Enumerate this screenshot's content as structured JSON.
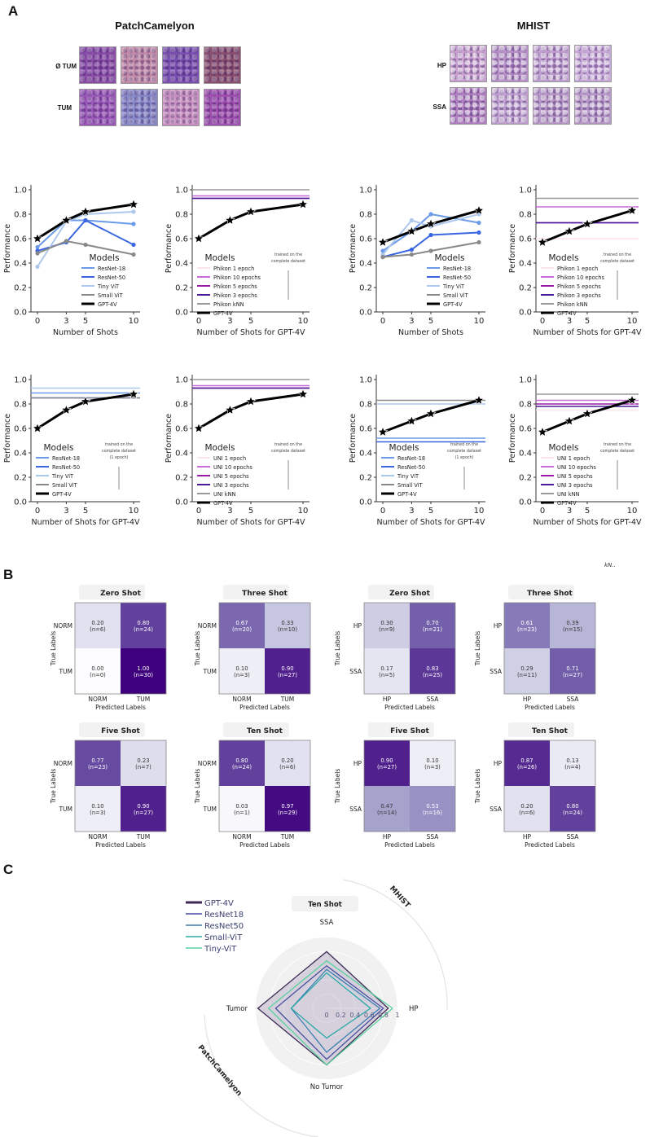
{
  "panels": {
    "a_label": "A",
    "b_label": "B",
    "c_label": "C"
  },
  "stray_text": "kN..",
  "datasets": {
    "pcam": {
      "title": "PatchCamelyon",
      "row_labels": [
        "Ø TUM",
        "TUM"
      ],
      "tile_colors": [
        [
          "#8a4ea8",
          "#c08aa8",
          "#7a50b0",
          "#8a5070"
        ],
        [
          "#9a58b8",
          "#8888c8",
          "#c890c0",
          "#a050b0"
        ]
      ]
    },
    "mhist": {
      "title": "MHIST",
      "row_labels": [
        "HP",
        "SSA"
      ],
      "tile_colors": [
        [
          "#c8a0d0",
          "#b890c8",
          "#c0a0d0",
          "#c8a8d8"
        ],
        [
          "#b080c0",
          "#c0a0d0",
          "#b898c8",
          "#b898c8"
        ]
      ]
    }
  },
  "chart_data": [
    {
      "id": "pcam-fewshot",
      "type": "line",
      "xlabel": "Number of Shots",
      "ylabel": "Performance",
      "x": [
        0,
        3,
        5,
        10
      ],
      "xticks": [
        "0",
        "3",
        "5",
        "10"
      ],
      "yticks": [
        "0.0",
        "0.2",
        "0.4",
        "0.6",
        "0.8",
        "1.0"
      ],
      "ylim": [
        0,
        1
      ],
      "legend_title": "Models",
      "legend_position": "lower-right",
      "series": [
        {
          "name": "ResNet-18",
          "color": "#6b9ae8",
          "values": [
            0.53,
            0.75,
            0.75,
            0.72
          ]
        },
        {
          "name": "ResNet-50",
          "color": "#3a66e0",
          "values": [
            0.5,
            0.57,
            0.75,
            0.55
          ]
        },
        {
          "name": "Tiny ViT",
          "color": "#aec7ec",
          "values": [
            0.37,
            0.74,
            0.8,
            0.82
          ]
        },
        {
          "name": "Small ViT",
          "color": "#888888",
          "values": [
            0.48,
            0.58,
            0.55,
            0.47
          ]
        },
        {
          "name": "GPT-4V",
          "color": "#000000",
          "values": [
            0.6,
            0.75,
            0.82,
            0.88
          ],
          "star": true
        }
      ],
      "hlines": []
    },
    {
      "id": "pcam-phikon",
      "type": "line",
      "xlabel": "Number of Shots for GPT-4V",
      "ylabel": "Performance",
      "x": [
        0,
        3,
        5,
        10
      ],
      "xticks": [
        "0",
        "3",
        "5",
        "10"
      ],
      "yticks": [
        "0.0",
        "0.2",
        "0.4",
        "0.6",
        "0.8",
        "1.0"
      ],
      "ylim": [
        0,
        1
      ],
      "legend_title": "Models",
      "legend_position": "lower-left",
      "annotation": [
        "trained on the",
        "complete dataset"
      ],
      "series": [
        {
          "name": "Phikon 1 epoch",
          "color": "#fbe4ec",
          "hline": 0.93
        },
        {
          "name": "Phikon 10 epochs",
          "color": "#c86ad8",
          "hline": 0.95
        },
        {
          "name": "Phikon 5 epochs",
          "color": "#9a1aa8",
          "hline": 0.93
        },
        {
          "name": "Phikon 3 epochs",
          "color": "#4a1a98",
          "hline": 0.93
        },
        {
          "name": "Phikon kNN",
          "color": "#999999",
          "hline": 1.0
        },
        {
          "name": "GPT-4V",
          "color": "#000000",
          "values": [
            0.6,
            0.75,
            0.82,
            0.88
          ],
          "star": true
        }
      ]
    },
    {
      "id": "mhist-fewshot",
      "type": "line",
      "xlabel": "Number of Shots",
      "ylabel": "Performance",
      "x": [
        0,
        3,
        5,
        10
      ],
      "xticks": [
        "0",
        "3",
        "5",
        "10"
      ],
      "yticks": [
        "0.0",
        "0.2",
        "0.4",
        "0.6",
        "0.8",
        "1.0"
      ],
      "ylim": [
        0,
        1
      ],
      "legend_title": "Models",
      "legend_position": "lower-right",
      "series": [
        {
          "name": "ResNet-18",
          "color": "#6b9ae8",
          "values": [
            0.5,
            0.66,
            0.8,
            0.73
          ]
        },
        {
          "name": "ResNet-50",
          "color": "#3a66e0",
          "values": [
            0.45,
            0.51,
            0.63,
            0.65
          ]
        },
        {
          "name": "Tiny ViT",
          "color": "#aec7ec",
          "values": [
            0.47,
            0.75,
            0.7,
            0.8
          ]
        },
        {
          "name": "Small ViT",
          "color": "#888888",
          "values": [
            0.45,
            0.47,
            0.5,
            0.57
          ]
        },
        {
          "name": "GPT-4V",
          "color": "#000000",
          "values": [
            0.57,
            0.66,
            0.72,
            0.83
          ],
          "star": true
        }
      ]
    },
    {
      "id": "mhist-phikon",
      "type": "line",
      "xlabel": "Number of Shots for GPT-4V",
      "ylabel": "Performance",
      "x": [
        0,
        3,
        5,
        10
      ],
      "xticks": [
        "0",
        "3",
        "5",
        "10"
      ],
      "yticks": [
        "0.0",
        "0.2",
        "0.4",
        "0.6",
        "0.8",
        "1.0"
      ],
      "ylim": [
        0,
        1
      ],
      "legend_title": "Models",
      "legend_position": "lower-left",
      "annotation": [
        "trained on the",
        "complete dataset"
      ],
      "series": [
        {
          "name": "Phikon 1 epoch",
          "color": "#fbe4ec",
          "hline": 0.6
        },
        {
          "name": "Phikon 10 epochs",
          "color": "#c86ad8",
          "hline": 0.86
        },
        {
          "name": "Phikon 5 epochs",
          "color": "#9a1aa8",
          "hline": 0.73
        },
        {
          "name": "Phikon 3 epochs",
          "color": "#4a1a98",
          "hline": 0.73
        },
        {
          "name": "Phikon kNN",
          "color": "#999999",
          "hline": 0.93
        },
        {
          "name": "GPT-4V",
          "color": "#000000",
          "values": [
            0.57,
            0.66,
            0.72,
            0.83
          ],
          "star": true
        }
      ]
    },
    {
      "id": "pcam-cnn-full",
      "type": "line",
      "xlabel": "Number of Shots for GPT-4V",
      "ylabel": "Performance",
      "x": [
        0,
        3,
        5,
        10
      ],
      "xticks": [
        "0",
        "3",
        "5",
        "10"
      ],
      "yticks": [
        "0.0",
        "0.2",
        "0.4",
        "0.6",
        "0.8",
        "1.0"
      ],
      "ylim": [
        0,
        1
      ],
      "legend_title": "Models",
      "legend_position": "lower-left",
      "annotation": [
        "trained on the",
        "complete dataset",
        "(1 epoch)"
      ],
      "series": [
        {
          "name": "ResNet-18",
          "color": "#6b9ae8",
          "hline": 0.89
        },
        {
          "name": "ResNet-50",
          "color": "#3a66e0",
          "hline": 0.85
        },
        {
          "name": "Tiny ViT",
          "color": "#aec7ec",
          "hline": 0.93
        },
        {
          "name": "Small ViT",
          "color": "#888888",
          "hline": 0.85
        },
        {
          "name": "GPT-4V",
          "color": "#000000",
          "values": [
            0.6,
            0.75,
            0.82,
            0.88
          ],
          "star": true
        }
      ]
    },
    {
      "id": "pcam-uni",
      "type": "line",
      "xlabel": "Number of Shots for GPT-4V",
      "ylabel": "Performance",
      "x": [
        0,
        3,
        5,
        10
      ],
      "xticks": [
        "0",
        "3",
        "5",
        "10"
      ],
      "yticks": [
        "0.0",
        "0.2",
        "0.4",
        "0.6",
        "0.8",
        "1.0"
      ],
      "ylim": [
        0,
        1
      ],
      "legend_title": "Models",
      "legend_position": "lower-left",
      "annotation": [
        "trained on the",
        "complete dataset"
      ],
      "series": [
        {
          "name": "UNI 1 epoch",
          "color": "#fbe4ec",
          "hline": 0.93
        },
        {
          "name": "UNI 10 epochs",
          "color": "#c86ad8",
          "hline": 0.95
        },
        {
          "name": "UNI 5 epochs",
          "color": "#9a1aa8",
          "hline": 0.93
        },
        {
          "name": "UNI 3 epochs",
          "color": "#4a1a98",
          "hline": 0.93
        },
        {
          "name": "UNI kNN",
          "color": "#999999",
          "hline": 1.0
        },
        {
          "name": "GPT-4V",
          "color": "#000000",
          "values": [
            0.6,
            0.75,
            0.82,
            0.88
          ],
          "star": true
        }
      ]
    },
    {
      "id": "mhist-cnn-full",
      "type": "line",
      "xlabel": "Number of Shots for GPT-4V",
      "ylabel": "Performance",
      "x": [
        0,
        3,
        5,
        10
      ],
      "xticks": [
        "0",
        "3",
        "5",
        "10"
      ],
      "yticks": [
        "0.0",
        "0.2",
        "0.4",
        "0.6",
        "0.8",
        "1.0"
      ],
      "ylim": [
        0,
        1
      ],
      "legend_title": "Models",
      "legend_position": "lower-left",
      "annotation": [
        "trained on the",
        "complete dataset",
        "(1 epoch)"
      ],
      "series": [
        {
          "name": "ResNet-18",
          "color": "#6b9ae8",
          "hline": 0.52
        },
        {
          "name": "ResNet-50",
          "color": "#3a66e0",
          "hline": 0.49
        },
        {
          "name": "Tiny ViT",
          "color": "#aec7ec",
          "hline": 0.8
        },
        {
          "name": "Small ViT",
          "color": "#888888",
          "hline": 0.83
        },
        {
          "name": "GPT-4V",
          "color": "#000000",
          "values": [
            0.57,
            0.66,
            0.72,
            0.83
          ],
          "star": true
        }
      ]
    },
    {
      "id": "mhist-uni",
      "type": "line",
      "xlabel": "Number of Shots for GPT-4V",
      "ylabel": "Performance",
      "x": [
        0,
        3,
        5,
        10
      ],
      "xticks": [
        "0",
        "3",
        "5",
        "10"
      ],
      "yticks": [
        "0.0",
        "0.2",
        "0.4",
        "0.6",
        "0.8",
        "1.0"
      ],
      "ylim": [
        0,
        1
      ],
      "legend_title": "Models",
      "legend_position": "lower-left",
      "annotation": [
        "trained on the",
        "complete dataset"
      ],
      "series": [
        {
          "name": "UNI 1 epoch",
          "color": "#fbe4ec",
          "hline": 0.75
        },
        {
          "name": "UNI 10 epochs",
          "color": "#c86ad8",
          "hline": 0.83
        },
        {
          "name": "UNI 5 epochs",
          "color": "#9a1aa8",
          "hline": 0.8
        },
        {
          "name": "UNI 3 epochs",
          "color": "#4a1a98",
          "hline": 0.78
        },
        {
          "name": "UNI kNN",
          "color": "#999999",
          "hline": 0.88
        },
        {
          "name": "GPT-4V",
          "color": "#000000",
          "values": [
            0.57,
            0.66,
            0.72,
            0.83
          ],
          "star": true
        }
      ]
    },
    {
      "id": "cm-pcam-zero",
      "type": "heatmap",
      "title": "Zero Shot",
      "xlabel": "Predicted Labels",
      "ylabel": "True Labels",
      "labels": [
        "NORM",
        "TUM"
      ],
      "values": [
        [
          0.2,
          0.8
        ],
        [
          0.0,
          1.0
        ]
      ],
      "counts": [
        [
          6,
          24
        ],
        [
          0,
          30
        ]
      ]
    },
    {
      "id": "cm-pcam-three",
      "type": "heatmap",
      "title": "Three Shot",
      "xlabel": "Predicted Labels",
      "ylabel": "True Labels",
      "labels": [
        "NORM",
        "TUM"
      ],
      "values": [
        [
          0.67,
          0.33
        ],
        [
          0.1,
          0.9
        ]
      ],
      "counts": [
        [
          20,
          10
        ],
        [
          3,
          27
        ]
      ]
    },
    {
      "id": "cm-mhist-zero",
      "type": "heatmap",
      "title": "Zero Shot",
      "xlabel": "Predicted Labels",
      "ylabel": "True Labels",
      "labels": [
        "HP",
        "SSA"
      ],
      "values": [
        [
          0.3,
          0.7
        ],
        [
          0.17,
          0.83
        ]
      ],
      "counts": [
        [
          9,
          21
        ],
        [
          5,
          25
        ]
      ]
    },
    {
      "id": "cm-mhist-three",
      "type": "heatmap",
      "title": "Three Shot",
      "xlabel": "Predicted Labels",
      "ylabel": "True Labels",
      "labels": [
        "HP",
        "SSA"
      ],
      "values": [
        [
          0.61,
          0.39
        ],
        [
          0.29,
          0.71
        ]
      ],
      "counts": [
        [
          23,
          15
        ],
        [
          11,
          27
        ]
      ]
    },
    {
      "id": "cm-pcam-five",
      "type": "heatmap",
      "title": "Five Shot",
      "xlabel": "Predicted Labels",
      "ylabel": "True Labels",
      "labels": [
        "NORM",
        "TUM"
      ],
      "values": [
        [
          0.77,
          0.23
        ],
        [
          0.1,
          0.9
        ]
      ],
      "counts": [
        [
          23,
          7
        ],
        [
          3,
          27
        ]
      ]
    },
    {
      "id": "cm-pcam-ten",
      "type": "heatmap",
      "title": "Ten Shot",
      "xlabel": "Predicted Labels",
      "ylabel": "True Labels",
      "labels": [
        "NORM",
        "TUM"
      ],
      "values": [
        [
          0.8,
          0.2
        ],
        [
          0.03,
          0.97
        ]
      ],
      "counts": [
        [
          24,
          6
        ],
        [
          1,
          29
        ]
      ]
    },
    {
      "id": "cm-mhist-five",
      "type": "heatmap",
      "title": "Five Shot",
      "xlabel": "Predicted Labels",
      "ylabel": "True Labels",
      "labels": [
        "HP",
        "SSA"
      ],
      "values": [
        [
          0.9,
          0.1
        ],
        [
          0.47,
          0.53
        ]
      ],
      "counts": [
        [
          27,
          3
        ],
        [
          14,
          16
        ]
      ]
    },
    {
      "id": "cm-mhist-ten",
      "type": "heatmap",
      "title": "Ten Shot",
      "xlabel": "Predicted Labels",
      "ylabel": "True Labels",
      "labels": [
        "HP",
        "SSA"
      ],
      "values": [
        [
          0.87,
          0.13
        ],
        [
          0.2,
          0.8
        ]
      ],
      "counts": [
        [
          26,
          4
        ],
        [
          6,
          24
        ]
      ]
    },
    {
      "id": "radar-ten-shot",
      "type": "radar",
      "title": "Ten Shot",
      "axes": [
        "SSA",
        "HP",
        "No Tumor",
        "Tumor"
      ],
      "radial_ticks": [
        "0",
        "0.2",
        "0.4",
        "0.6",
        "0.8",
        "1"
      ],
      "range": [
        0,
        1
      ],
      "group_labels": [
        "MHIST",
        "PatchCamelyon"
      ],
      "legend_position": "top-left",
      "series": [
        {
          "name": "GPT-4V",
          "color": "#3d2a55",
          "fill": true,
          "values": [
            0.8,
            0.87,
            0.8,
            0.97
          ]
        },
        {
          "name": "ResNet18",
          "color": "#4a4fa0",
          "values": [
            0.6,
            0.8,
            0.72,
            0.72
          ]
        },
        {
          "name": "ResNet50",
          "color": "#3b7fb0",
          "values": [
            0.55,
            0.75,
            0.62,
            0.5
          ]
        },
        {
          "name": "Small-ViT",
          "color": "#2aa8a8",
          "values": [
            0.5,
            0.62,
            0.42,
            0.5
          ]
        },
        {
          "name": "Tiny-ViT",
          "color": "#5ad0a0",
          "values": [
            0.67,
            0.93,
            0.8,
            0.82
          ]
        }
      ]
    }
  ]
}
